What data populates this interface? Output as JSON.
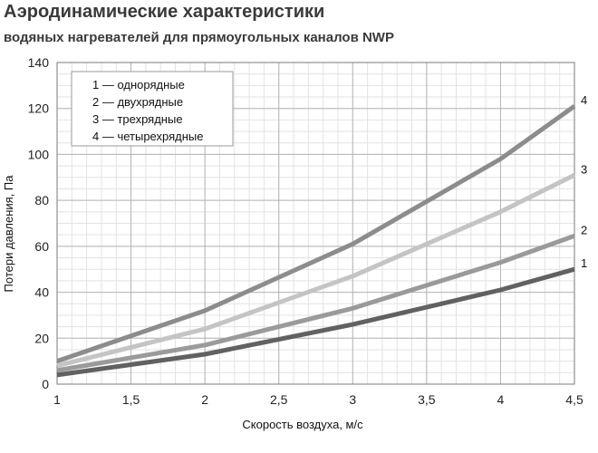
{
  "header": {
    "title": "Аэродинамические характеристики",
    "subtitle": "водяных нагревателей для прямоугольных каналов NWP"
  },
  "chart_data": {
    "type": "line",
    "title": "Аэродинамические характеристики",
    "subtitle": "водяных нагревателей для прямоугольных каналов NWP",
    "xlabel": "Скорость воздуха, м/с",
    "ylabel": "Потери давления, Па",
    "xlim": [
      1,
      4.5
    ],
    "ylim": [
      0,
      140
    ],
    "xticks": [
      1,
      1.5,
      2,
      2.5,
      3,
      3.5,
      4,
      4.5
    ],
    "xtick_labels": [
      "1",
      "1,5",
      "2",
      "2,5",
      "3",
      "3,5",
      "4",
      "4,5"
    ],
    "yticks": [
      0,
      20,
      40,
      60,
      80,
      100,
      120,
      140
    ],
    "ytick_labels": [
      "0",
      "20",
      "40",
      "60",
      "80",
      "100",
      "120",
      "140"
    ],
    "grid": true,
    "legend_position": "top-left",
    "series": [
      {
        "name": "1 — однорядные",
        "end_label": "1",
        "color": "#616161",
        "x": [
          1,
          2,
          3,
          4,
          4.5
        ],
        "y": [
          4,
          13,
          26,
          41,
          50
        ]
      },
      {
        "name": "2 — двухрядные",
        "end_label": "2",
        "color": "#9a9a9a",
        "x": [
          1,
          2,
          3,
          4,
          4.5
        ],
        "y": [
          6,
          17,
          33,
          53,
          64.5
        ]
      },
      {
        "name": "3 — трехрядные",
        "end_label": "3",
        "color": "#c4c4c4",
        "x": [
          1,
          2,
          3,
          4,
          4.5
        ],
        "y": [
          8,
          24,
          47,
          75,
          91
        ]
      },
      {
        "name": "4 — четырехрядные",
        "end_label": "4",
        "color": "#8c8c8c",
        "x": [
          1,
          2,
          3,
          4,
          4.5
        ],
        "y": [
          10,
          32,
          61,
          98,
          121
        ]
      }
    ]
  }
}
